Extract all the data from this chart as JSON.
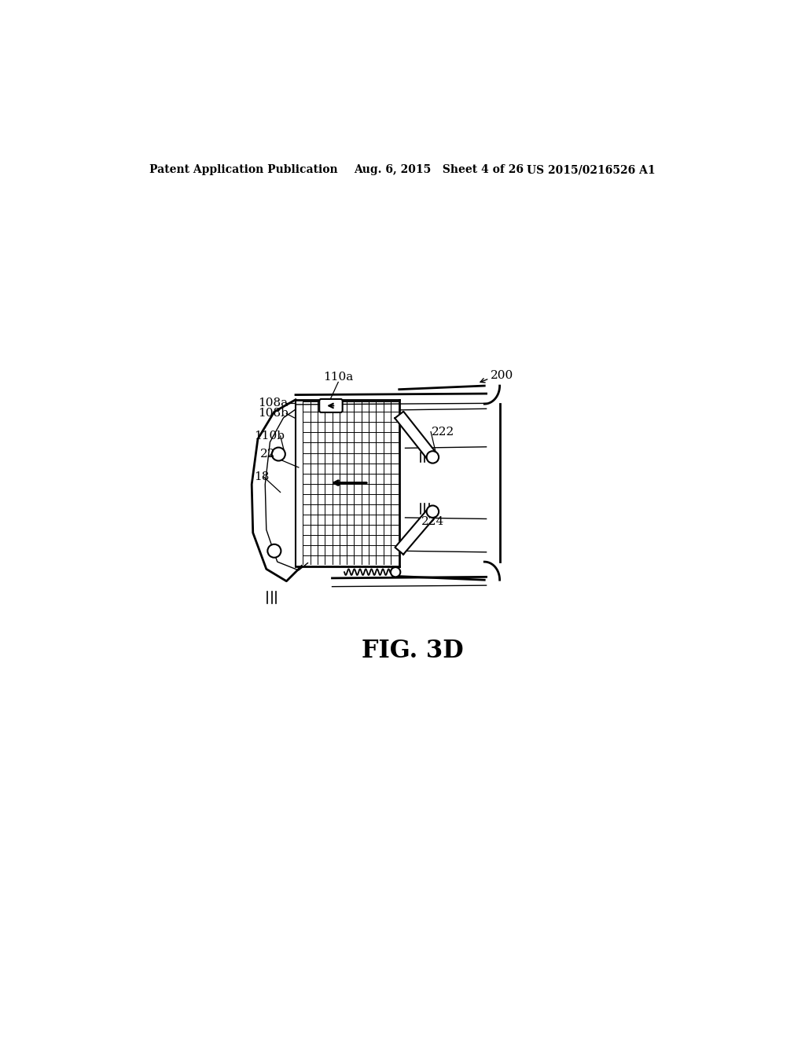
{
  "background_color": "#ffffff",
  "header_left": "Patent Application Publication",
  "header_center": "Aug. 6, 2015   Sheet 4 of 26",
  "header_right": "US 2015/0216526 A1",
  "figure_label": "FIG. 3D",
  "label_200": "200",
  "label_110a": "110a",
  "label_108a": "108a",
  "label_108b": "108b",
  "label_110b": "110b",
  "label_22": "22",
  "label_18": "18",
  "label_222": "222",
  "label_224": "224"
}
